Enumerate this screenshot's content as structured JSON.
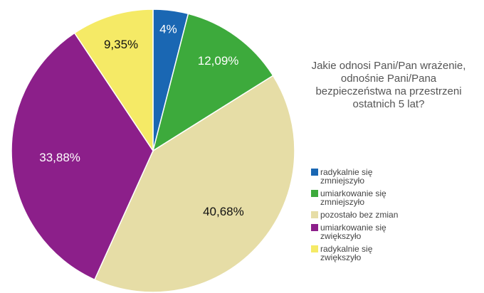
{
  "chart_data": {
    "type": "pie",
    "title": "Jakie odnosi Pani/Pan wrażenie, odnośnie Pani/Pana bezpieczeństwa na przestrzeni ostatnich 5 lat?",
    "categories": [
      "radykalnie się zmniejszyło",
      "umiarkowanie się zmniejszyło",
      "pozostało bez zmian",
      "umiarkowanie się zwiększyło",
      "radykalnie się zwiększyło"
    ],
    "values": [
      4,
      12.09,
      40.68,
      33.88,
      9.35
    ],
    "value_labels": [
      "4%",
      "12,09%",
      "40,68%",
      "33,88%",
      "9,35%"
    ],
    "colors": [
      "#1a67b3",
      "#3daa3c",
      "#e6dda6",
      "#8c1f8a",
      "#f5ea66"
    ],
    "legend": "right"
  }
}
